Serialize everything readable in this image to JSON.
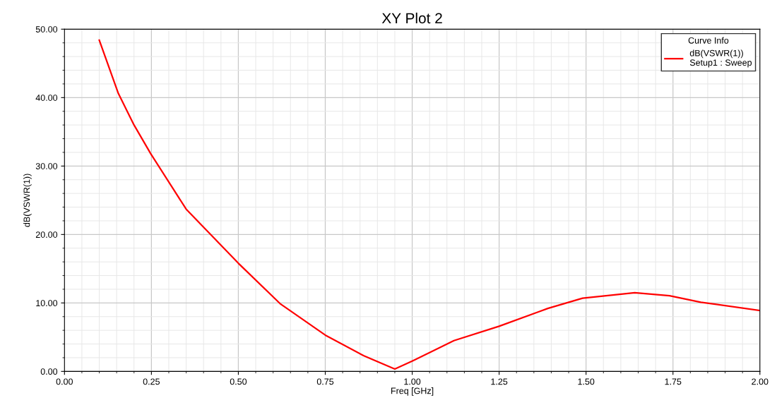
{
  "chart_data": {
    "type": "line",
    "title": "XY Plot 2",
    "xlabel": "Freq [GHz]",
    "ylabel": "dB(VSWR(1))",
    "legend_title": "Curve Info",
    "legend": "top right",
    "grid": true,
    "marker": "none",
    "line_style": "solid",
    "xlim": [
      0,
      2
    ],
    "ylim": [
      0,
      50
    ],
    "xticks": [
      {
        "value": 0,
        "label": "0.00"
      },
      {
        "value": 0.25,
        "label": "0.25"
      },
      {
        "value": 0.5,
        "label": "0.50"
      },
      {
        "value": 0.75,
        "label": "0.75"
      },
      {
        "value": 1,
        "label": "1.00"
      },
      {
        "value": 1.25,
        "label": "1.25"
      },
      {
        "value": 1.5,
        "label": "1.50"
      },
      {
        "value": 1.75,
        "label": "1.75"
      },
      {
        "value": 2,
        "label": "2.00"
      }
    ],
    "yticks": [
      {
        "value": 0,
        "label": "0.00"
      },
      {
        "value": 10,
        "label": "10.00"
      },
      {
        "value": 20,
        "label": "20.00"
      },
      {
        "value": 30,
        "label": "30.00"
      },
      {
        "value": 40,
        "label": "40.00"
      },
      {
        "value": 50,
        "label": "50.00"
      }
    ],
    "series": [
      {
        "name": "dB(VSWR(1))\nSetup1 : Sweep",
        "color": "#ff0000",
        "x": [
          0.1,
          0.155,
          0.2,
          0.248,
          0.35,
          0.5,
          0.62,
          0.75,
          0.86,
          0.95,
          1.0,
          1.12,
          1.25,
          1.39,
          1.49,
          1.64,
          1.74,
          1.83,
          2.0
        ],
        "values": [
          48.4,
          40.6,
          36.0,
          31.8,
          23.7,
          15.8,
          9.9,
          5.3,
          2.3,
          0.35,
          1.5,
          4.5,
          6.6,
          9.2,
          10.7,
          11.5,
          11.05,
          10.1,
          8.9
        ]
      }
    ]
  }
}
